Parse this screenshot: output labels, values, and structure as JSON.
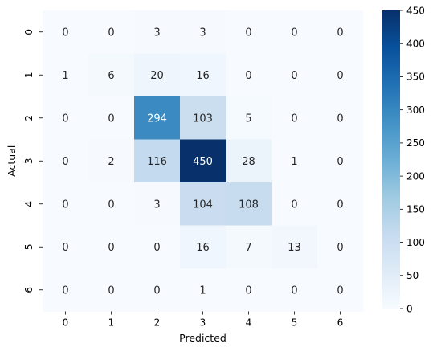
{
  "chart_data": {
    "type": "heatmap",
    "title": "",
    "xlabel": "Predicted",
    "ylabel": "Actual",
    "x_categories": [
      "0",
      "1",
      "2",
      "3",
      "4",
      "5",
      "6"
    ],
    "y_categories": [
      "0",
      "1",
      "2",
      "3",
      "4",
      "5",
      "6"
    ],
    "values": [
      [
        0,
        0,
        3,
        3,
        0,
        0,
        0
      ],
      [
        1,
        6,
        20,
        16,
        0,
        0,
        0
      ],
      [
        0,
        0,
        294,
        103,
        5,
        0,
        0
      ],
      [
        0,
        2,
        116,
        450,
        28,
        1,
        0
      ],
      [
        0,
        0,
        3,
        104,
        108,
        0,
        0
      ],
      [
        0,
        0,
        0,
        16,
        7,
        13,
        0
      ],
      [
        0,
        0,
        0,
        1,
        0,
        0,
        0
      ]
    ],
    "colormap": "Blues",
    "vmin": 0,
    "vmax": 450,
    "colorbar_ticks": [
      0,
      50,
      100,
      150,
      200,
      250,
      300,
      350,
      400,
      450
    ],
    "annotations": true
  }
}
